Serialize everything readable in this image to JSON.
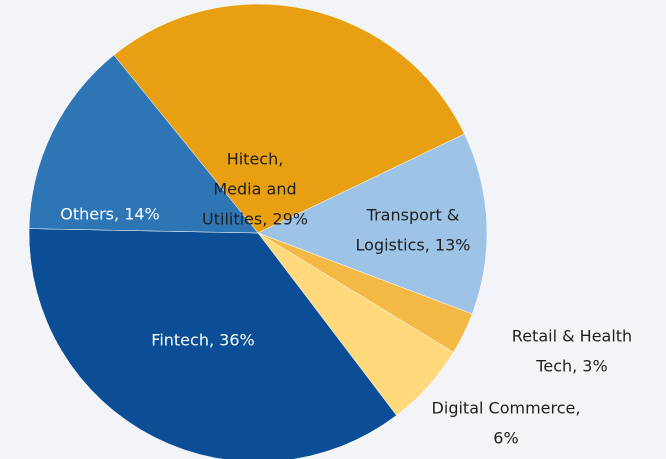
{
  "chart_data": {
    "type": "pie",
    "labels": [
      [
        "Hitech,",
        "Media and",
        "Utilities, 29%"
      ],
      [
        "Transport &",
        "Logistics, 13%"
      ],
      [
        "Retail & Health",
        "Tech, 3%"
      ],
      [
        "Digital Commerce,",
        "6%"
      ],
      [
        "Fintech, 36%"
      ],
      [
        "Others, 14%"
      ]
    ],
    "values": [
      29,
      13,
      3,
      6,
      36,
      14
    ],
    "colors": [
      "#e8a012",
      "#9dc3e6",
      "#f4b844",
      "#ffd97c",
      "#0b4e96",
      "#2e75b6"
    ],
    "label_colors": [
      "#1f1f1f",
      "#1f1f1f",
      "#1f1f1f",
      "#1f1f1f",
      "#ffffff",
      "#ffffff"
    ]
  }
}
